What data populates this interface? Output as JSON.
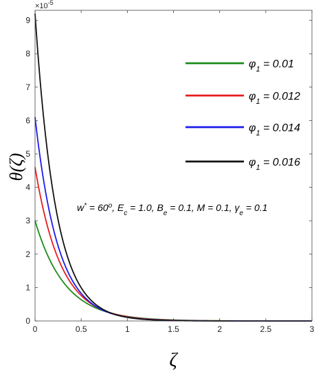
{
  "chart_data": {
    "type": "line",
    "xlabel": "ζ",
    "ylabel": "θ(ζ)",
    "xlim": [
      0,
      3
    ],
    "ylim": [
      0,
      9.3
    ],
    "y_exponent": "×10",
    "y_exponent_power": "-5",
    "x_ticks": [
      "0",
      "0.5",
      "1",
      "1.5",
      "2",
      "2.5",
      "3"
    ],
    "y_ticks": [
      "0",
      "1",
      "2",
      "3",
      "4",
      "5",
      "6",
      "7",
      "8",
      "9"
    ],
    "legend_position": "top-right",
    "annotation": "w* = 60°, Ec = 1.0, Be = 0.1, M = 0.1, γe = 0.1",
    "series": [
      {
        "name": "φ1 = 0.01",
        "symbol": "φ",
        "sub": "1",
        "value": " = 0.01",
        "color": "#1a8a1a",
        "theta0": 3.0,
        "decay": 3.1
      },
      {
        "name": "φ1 = 0.012",
        "symbol": "φ",
        "sub": "1",
        "value": " = 0.012",
        "color": "#e81c1c",
        "theta0": 4.6,
        "decay": 3.6
      },
      {
        "name": "φ1 = 0.014",
        "symbol": "φ",
        "sub": "1",
        "value": " = 0.014",
        "color": "#1a1aee",
        "theta0": 6.1,
        "decay": 4.0
      },
      {
        "name": "φ1 = 0.016",
        "symbol": "φ",
        "sub": "1",
        "value": " = 0.016",
        "color": "#111111",
        "theta0": 9.2,
        "decay": 4.45
      }
    ]
  }
}
